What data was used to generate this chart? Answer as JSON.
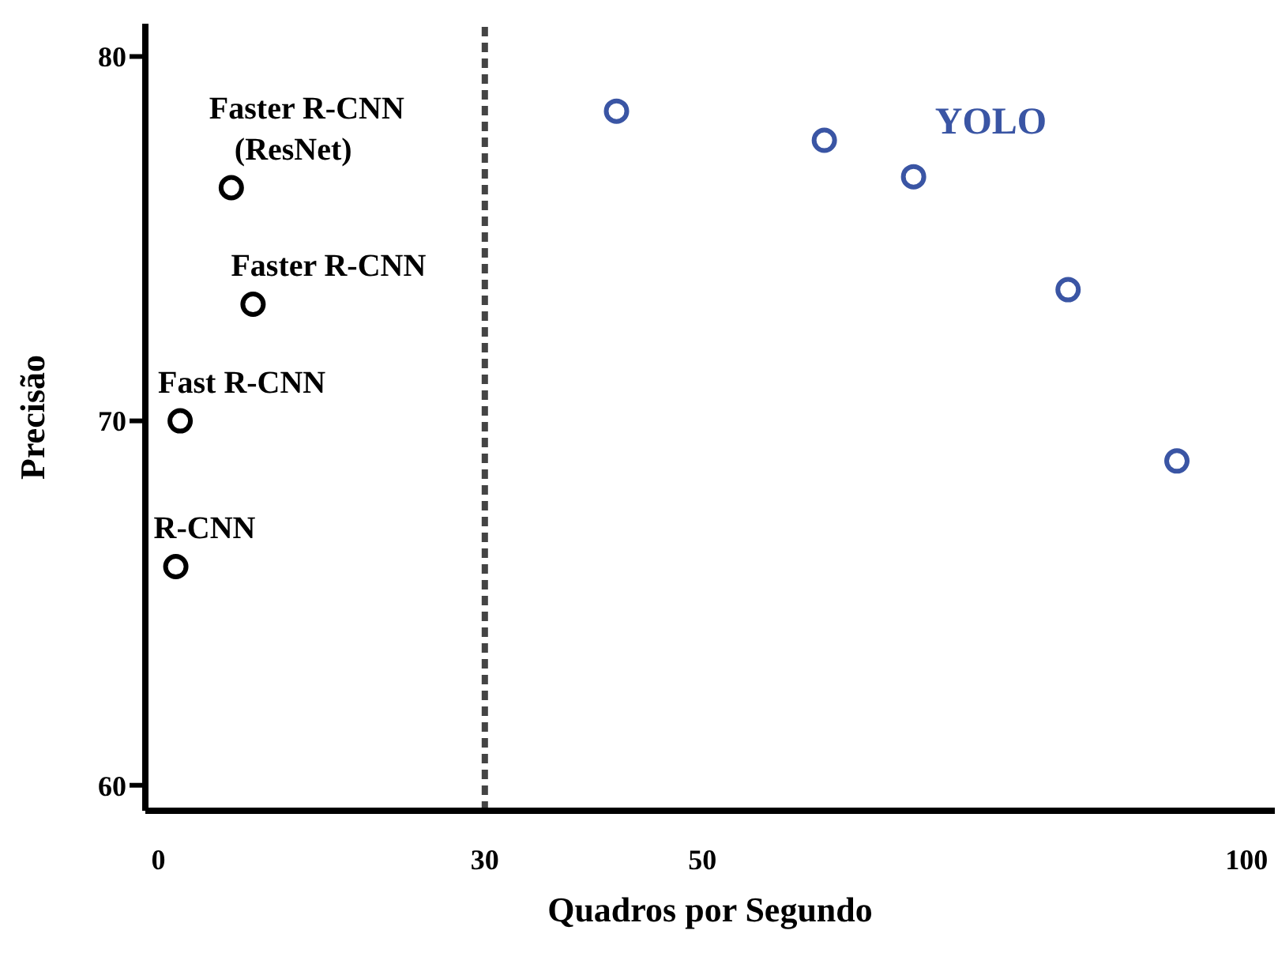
{
  "chart_data": {
    "type": "scatter",
    "xlabel": "Quadros por Segundo",
    "ylabel": "Precisão",
    "xlim": [
      -1.2,
      102.6
    ],
    "ylim": [
      59.3,
      80.9
    ],
    "xticks": [
      0,
      30,
      50,
      100
    ],
    "yticks": [
      60,
      70,
      80
    ],
    "grid": false,
    "legend": false,
    "marker": "circle",
    "series": [
      {
        "color": "#000000",
        "x": [
          1.6,
          2.0,
          8.7,
          6.7
        ],
        "values": [
          66.0,
          70.0,
          73.2,
          76.4
        ]
      },
      {
        "name": "YOLO",
        "color": "#3a55a4",
        "x": [
          42.1,
          61.2,
          69.4,
          83.6,
          93.6
        ],
        "values": [
          78.5,
          77.7,
          76.7,
          73.6,
          68.9
        ]
      }
    ],
    "annotations": [
      {
        "text": "R-CNN",
        "x": 1.6,
        "y": 66.0
      },
      {
        "text": "Fast R-CNN",
        "x": 2.0,
        "y": 70.0
      },
      {
        "text": "Faster R-CNN",
        "x": 8.7,
        "y": 73.2
      },
      {
        "text": "Faster R-CNN\n(ResNet)",
        "x": 6.7,
        "y": 76.4
      }
    ],
    "ref_lines": [
      {
        "axis": "x",
        "value": 30,
        "color": "#444444",
        "line_style": "dotted"
      }
    ]
  }
}
